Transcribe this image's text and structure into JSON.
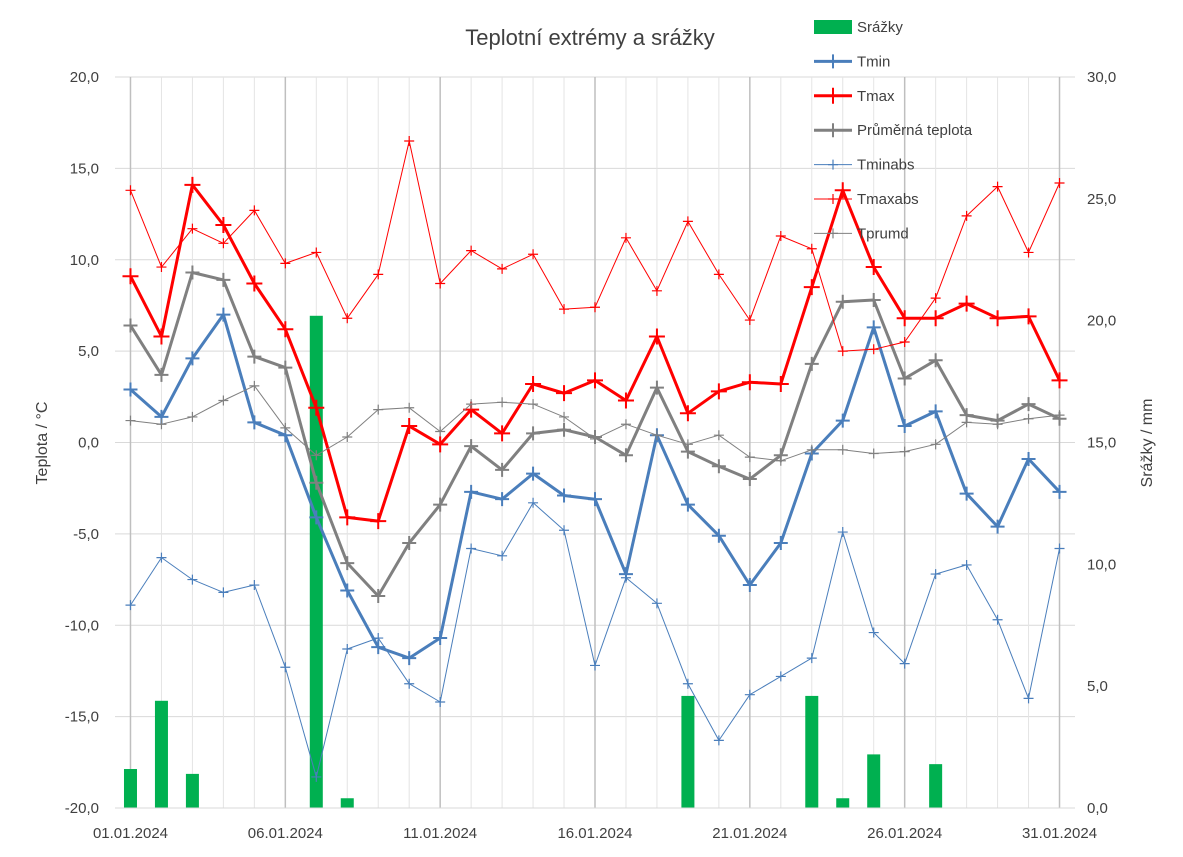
{
  "chart_data": {
    "type": "line",
    "title": "Teplotní extrémy a srážky",
    "ylabel": "Teplota / °C",
    "y2label": "Srážky / mm",
    "ylim": [
      -20,
      20
    ],
    "y2lim": [
      0,
      30
    ],
    "yticks": [
      "-20,0",
      "-15,0",
      "-10,0",
      "-5,0",
      "0,0",
      "5,0",
      "10,0",
      "15,0",
      "20,0"
    ],
    "y2ticks": [
      "0,0",
      "5,0",
      "10,0",
      "15,0",
      "20,0",
      "25,0",
      "30,0"
    ],
    "xtick_labels": [
      "01.01.2024",
      "06.01.2024",
      "11.01.2024",
      "16.01.2024",
      "21.01.2024",
      "26.01.2024",
      "31.01.2024"
    ],
    "x": [
      "01.01.2024",
      "02.01.2024",
      "03.01.2024",
      "04.01.2024",
      "05.01.2024",
      "06.01.2024",
      "07.01.2024",
      "08.01.2024",
      "09.01.2024",
      "10.01.2024",
      "11.01.2024",
      "12.01.2024",
      "13.01.2024",
      "14.01.2024",
      "15.01.2024",
      "16.01.2024",
      "17.01.2024",
      "18.01.2024",
      "19.01.2024",
      "20.01.2024",
      "21.01.2024",
      "22.01.2024",
      "23.01.2024",
      "24.01.2024",
      "25.01.2024",
      "26.01.2024",
      "27.01.2024",
      "28.01.2024",
      "29.01.2024",
      "30.01.2024",
      "31.01.2024"
    ],
    "grid": true,
    "legend_position": "top-right",
    "series": [
      {
        "name": "Srážky",
        "type": "bar",
        "axis": "right",
        "color": "#00b050",
        "values": [
          1.6,
          4.4,
          1.4,
          0,
          0,
          0,
          20.2,
          0.4,
          0,
          0,
          0,
          0,
          0,
          0,
          0,
          0,
          0,
          0,
          4.6,
          0,
          0,
          0,
          4.6,
          0.4,
          2.2,
          0,
          1.8,
          0,
          0,
          0,
          0
        ]
      },
      {
        "name": "Tmin",
        "type": "line",
        "axis": "left",
        "color": "#4a7ebb",
        "width": 3,
        "marker": 14,
        "values": [
          2.9,
          1.4,
          4.6,
          7.0,
          1.1,
          0.4,
          -4.1,
          -8.1,
          -11.2,
          -11.8,
          -10.7,
          -2.7,
          -3.1,
          -1.7,
          -2.9,
          -3.1,
          -7.2,
          0.4,
          -3.4,
          -5.1,
          -7.8,
          -5.5,
          -0.6,
          1.2,
          6.3,
          0.9,
          1.7,
          -2.8,
          -4.6,
          -0.9,
          -2.7
        ]
      },
      {
        "name": "Tmax",
        "type": "line",
        "axis": "left",
        "color": "#ff0000",
        "width": 3,
        "marker": 16,
        "values": [
          9.1,
          5.8,
          14.1,
          11.9,
          8.7,
          6.2,
          1.9,
          -4.1,
          -4.3,
          0.9,
          -0.1,
          1.8,
          0.5,
          3.2,
          2.7,
          3.4,
          2.3,
          5.8,
          1.6,
          2.8,
          3.3,
          3.2,
          8.5,
          13.8,
          9.6,
          6.8,
          6.8,
          7.6,
          6.8,
          6.9,
          3.4
        ]
      },
      {
        "name": "Průměrná teplota",
        "type": "line",
        "axis": "left",
        "color": "#808080",
        "width": 3,
        "marker": 14,
        "values": [
          6.4,
          3.7,
          9.3,
          8.9,
          4.7,
          4.1,
          -2.2,
          -6.6,
          -8.4,
          -5.5,
          -3.4,
          -0.2,
          -1.5,
          0.5,
          0.7,
          0.3,
          -0.7,
          3.0,
          -0.5,
          -1.3,
          -2.0,
          -0.7,
          4.3,
          7.7,
          7.8,
          3.5,
          4.5,
          1.5,
          1.2,
          2.1,
          1.3
        ]
      },
      {
        "name": "Tminabs",
        "type": "line",
        "axis": "left",
        "color": "#4a7ebb",
        "width": 1,
        "marker": 10,
        "values": [
          -8.9,
          -6.3,
          -7.5,
          -8.2,
          -7.8,
          -12.3,
          -18.3,
          -11.3,
          -10.7,
          -13.2,
          -14.2,
          -5.8,
          -6.2,
          -3.3,
          -4.8,
          -12.2,
          -7.4,
          -8.8,
          -13.2,
          -16.3,
          -13.8,
          -12.8,
          -11.8,
          -4.9,
          -10.4,
          -12.1,
          -7.2,
          -6.7,
          -9.7,
          -14.0,
          -5.8
        ]
      },
      {
        "name": "Tmaxabs",
        "type": "line",
        "axis": "left",
        "color": "#ff0000",
        "width": 1,
        "marker": 10,
        "values": [
          13.8,
          9.6,
          11.7,
          10.9,
          12.7,
          9.8,
          10.4,
          6.8,
          9.2,
          16.5,
          8.7,
          10.5,
          9.5,
          10.3,
          7.3,
          7.4,
          11.2,
          8.3,
          12.1,
          9.2,
          6.7,
          11.3,
          10.6,
          5.0,
          5.1,
          5.5,
          7.9,
          12.4,
          14.0,
          10.4,
          14.2
        ]
      },
      {
        "name": "Tprumd",
        "type": "line",
        "axis": "left",
        "color": "#808080",
        "width": 1,
        "marker": 10,
        "values": [
          1.2,
          1.0,
          1.4,
          2.3,
          3.1,
          0.8,
          -0.7,
          0.3,
          1.8,
          1.9,
          0.6,
          2.1,
          2.2,
          2.1,
          1.4,
          0.2,
          1.0,
          0.4,
          -0.1,
          0.4,
          -0.8,
          -1.0,
          -0.4,
          -0.4,
          -0.6,
          -0.5,
          -0.1,
          1.1,
          1.0,
          1.3,
          1.5
        ]
      }
    ]
  }
}
